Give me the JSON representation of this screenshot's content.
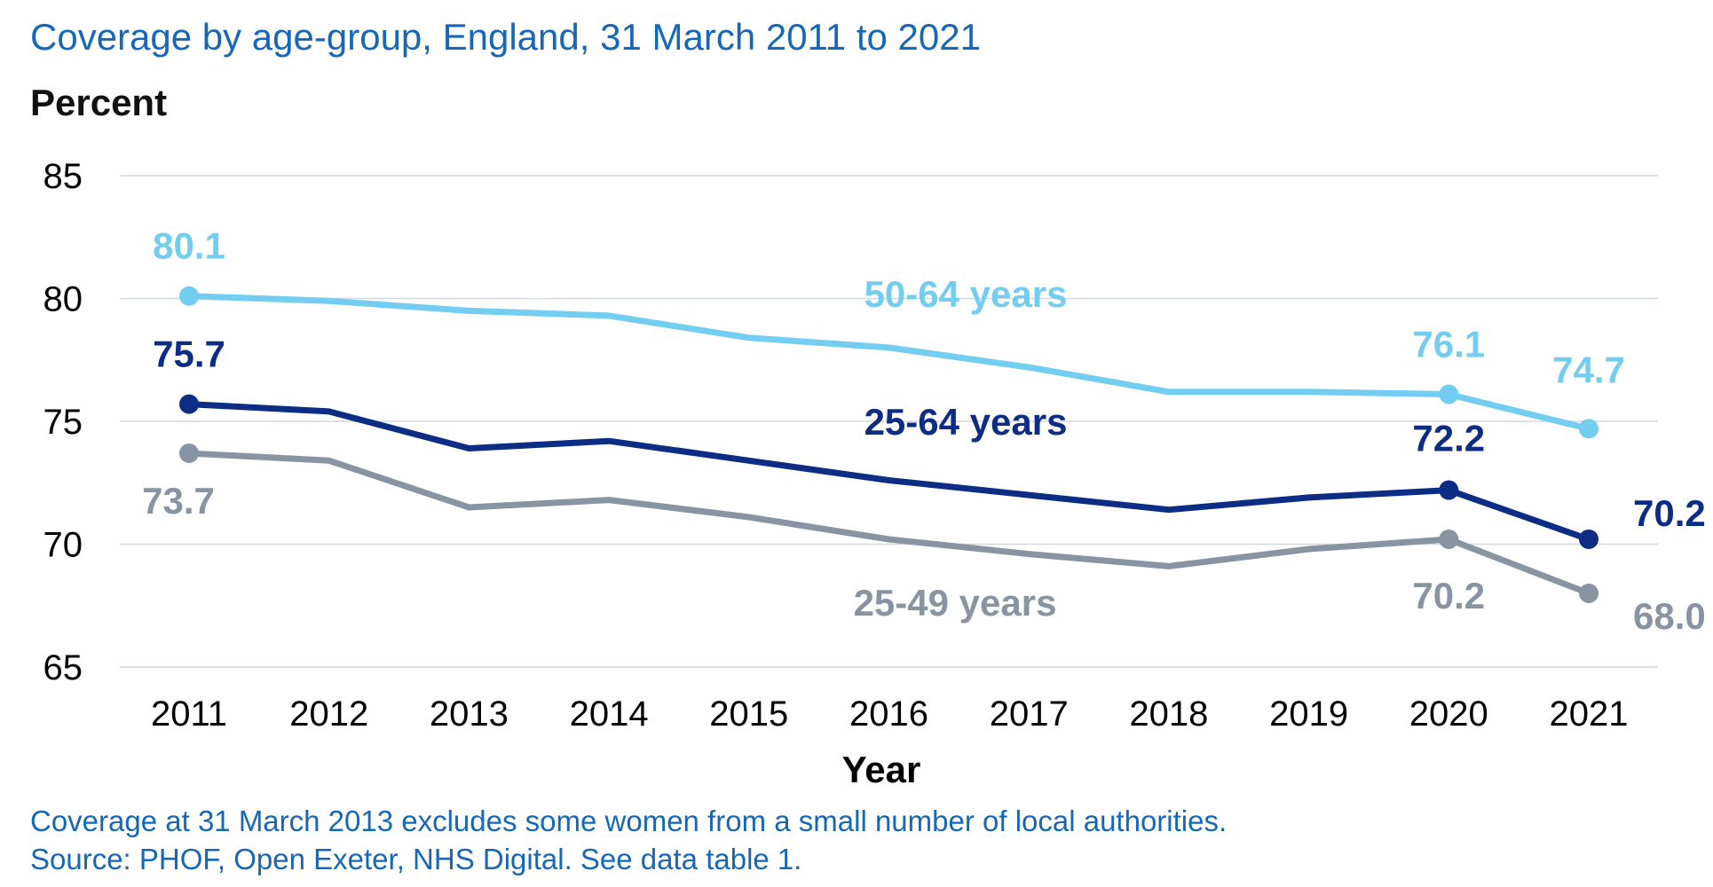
{
  "chart_data": {
    "type": "line",
    "title": "Coverage by age-group, England, 31 March 2011 to 2021",
    "ylabel": "Percent",
    "xlabel": "Year",
    "ylim": [
      65,
      85
    ],
    "yticks": [
      "65",
      "70",
      "75",
      "80",
      "85"
    ],
    "categories": [
      "2011",
      "2012",
      "2013",
      "2014",
      "2015",
      "2016",
      "2017",
      "2018",
      "2019",
      "2020",
      "2021"
    ],
    "grid": true,
    "series": [
      {
        "name": "50-64 years",
        "color": "#72cdf0",
        "values": [
          80.1,
          79.9,
          79.5,
          79.3,
          78.4,
          78.0,
          77.2,
          76.2,
          76.2,
          76.1,
          74.7
        ],
        "labels": [
          "80.1",
          "76.1",
          "74.7"
        ]
      },
      {
        "name": "25-64 years",
        "color": "#0c2d83",
        "values": [
          75.7,
          75.4,
          73.9,
          74.2,
          73.4,
          72.6,
          72.0,
          71.4,
          71.9,
          72.2,
          70.2
        ],
        "labels": [
          "75.7",
          "72.2",
          "70.2"
        ]
      },
      {
        "name": "25-49 years",
        "color": "#8894a2",
        "values": [
          73.7,
          73.4,
          71.5,
          71.8,
          71.1,
          70.2,
          69.6,
          69.1,
          69.8,
          70.2,
          68.0
        ],
        "labels": [
          "73.7",
          "70.2",
          "68.0"
        ]
      }
    ],
    "notes": [
      "Coverage at 31 March 2013 excludes some women from a small number of local authorities.",
      "Source: PHOF, Open Exeter, NHS Digital. See data table 1."
    ]
  }
}
